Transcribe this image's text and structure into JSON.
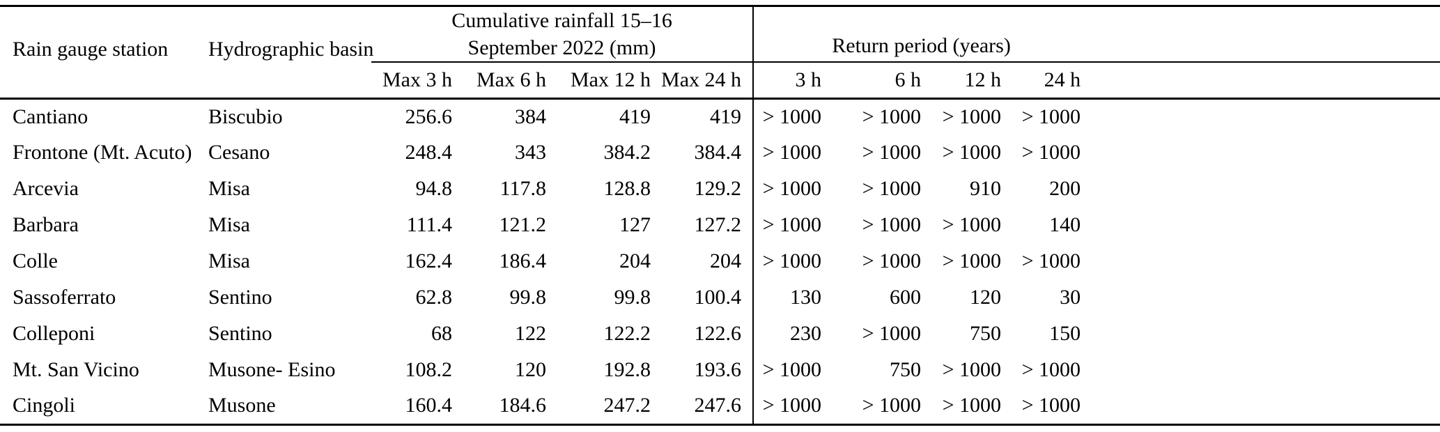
{
  "table": {
    "headers": {
      "station": "Rain gauge station",
      "basin": "Hydrographic basin",
      "rainfall_group_line1": "Cumulative rainfall 15–16",
      "rainfall_group_line2": "September 2022 (mm)",
      "return_group": "Return period (years)",
      "rainfall_sub": [
        "Max 3 h",
        "Max 6 h",
        "Max 12 h",
        "Max 24 h"
      ],
      "return_sub": [
        "3 h",
        "6 h",
        "12 h",
        "24 h"
      ]
    },
    "rows": [
      {
        "station": "Cantiano",
        "basin": "Biscubio",
        "rainfall": [
          "256.6",
          "384",
          "419",
          "419"
        ],
        "return_period": [
          "> 1000",
          "> 1000",
          "> 1000",
          "> 1000"
        ]
      },
      {
        "station": "Frontone (Mt. Acuto)",
        "basin": "Cesano",
        "rainfall": [
          "248.4",
          "343",
          "384.2",
          "384.4"
        ],
        "return_period": [
          "> 1000",
          "> 1000",
          "> 1000",
          "> 1000"
        ]
      },
      {
        "station": "Arcevia",
        "basin": "Misa",
        "rainfall": [
          "94.8",
          "117.8",
          "128.8",
          "129.2"
        ],
        "return_period": [
          "> 1000",
          "> 1000",
          "910",
          "200"
        ]
      },
      {
        "station": "Barbara",
        "basin": "Misa",
        "rainfall": [
          "111.4",
          "121.2",
          "127",
          "127.2"
        ],
        "return_period": [
          "> 1000",
          "> 1000",
          "> 1000",
          "140"
        ]
      },
      {
        "station": "Colle",
        "basin": "Misa",
        "rainfall": [
          "162.4",
          "186.4",
          "204",
          "204"
        ],
        "return_period": [
          "> 1000",
          "> 1000",
          "> 1000",
          "> 1000"
        ]
      },
      {
        "station": "Sassoferrato",
        "basin": "Sentino",
        "rainfall": [
          "62.8",
          "99.8",
          "99.8",
          "100.4"
        ],
        "return_period": [
          "130",
          "600",
          "120",
          "30"
        ]
      },
      {
        "station": "Colleponi",
        "basin": "Sentino",
        "rainfall": [
          "68",
          "122",
          "122.2",
          "122.6"
        ],
        "return_period": [
          "230",
          "> 1000",
          "750",
          "150"
        ]
      },
      {
        "station": "Mt. San Vicino",
        "basin": "Musone- Esino",
        "rainfall": [
          "108.2",
          "120",
          "192.8",
          "193.6"
        ],
        "return_period": [
          "> 1000",
          "750",
          "> 1000",
          "> 1000"
        ]
      },
      {
        "station": "Cingoli",
        "basin": "Musone",
        "rainfall": [
          "160.4",
          "184.6",
          "247.2",
          "247.6"
        ],
        "return_period": [
          "> 1000",
          "> 1000",
          "> 1000",
          "> 1000"
        ]
      }
    ]
  }
}
